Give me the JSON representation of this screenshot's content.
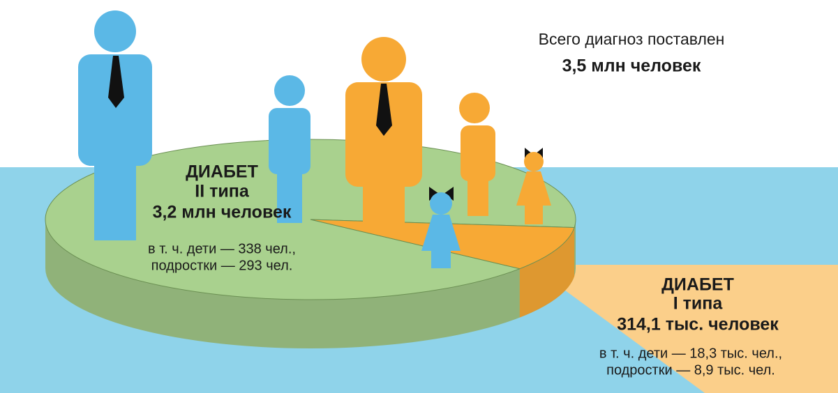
{
  "chart_data": {
    "type": "pie",
    "title": "Всего диагноз поставлен",
    "total_label": "3,5 млн человек",
    "heading": "ДИАБЕТ",
    "categories": [
      "II типа",
      "I типа"
    ],
    "values": [
      3200000,
      314100
    ],
    "value_labels": [
      "3,2 млн человек",
      "314,1 тыс. человек"
    ],
    "colors": [
      "#a9d18e",
      "#f7a935"
    ],
    "notes": [
      [
        "в т. ч. дети — 338  чел.,",
        "подростки — 293 чел."
      ],
      [
        "в т. ч. дети — 18,3 тыс. чел.,",
        "подростки — 8,9 тыс. чел."
      ]
    ]
  }
}
